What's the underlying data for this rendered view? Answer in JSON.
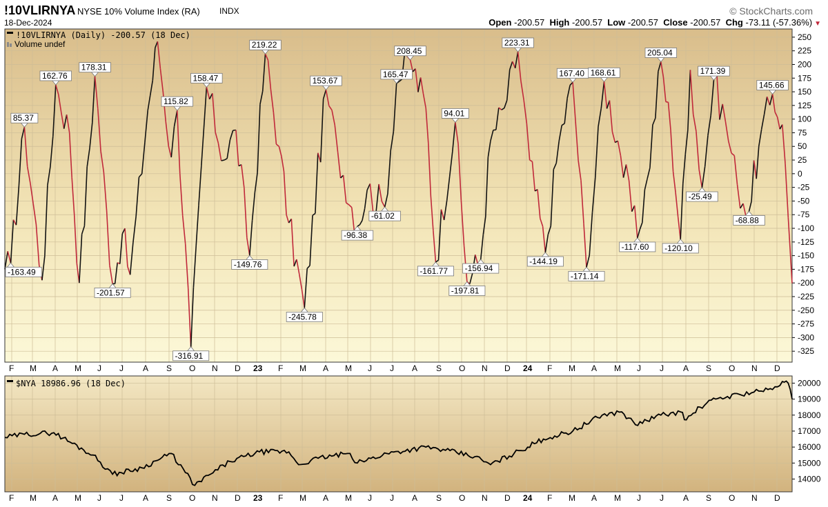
{
  "header": {
    "symbol": "!10VLIRNYA",
    "name": "NYSE 10% Volume Index (RA)",
    "exchange": "INDX",
    "date": "18-Dec-2024",
    "brand": "© StockCharts.com",
    "open_label": "Open",
    "open": "-200.57",
    "high_label": "High",
    "high": "-200.57",
    "low_label": "Low",
    "low": "-200.57",
    "close_label": "Close",
    "close": "-200.57",
    "chg_label": "Chg",
    "chg": "-73.11 (-57.36%)"
  },
  "chart_data": [
    {
      "type": "line",
      "legend": "!10VLIRNYA (Daily) -200.57 (18 Dec)",
      "sublegend": "Volume undef",
      "colors": {
        "up": "#111111",
        "down": "#c0283a"
      },
      "ylim": [
        -345,
        265
      ],
      "yticks": [
        250,
        225,
        200,
        175,
        150,
        125,
        100,
        75,
        50,
        25,
        0,
        -25,
        -50,
        -75,
        -100,
        -125,
        -150,
        -175,
        -200,
        -225,
        -250,
        -275,
        -300,
        -325
      ],
      "x_labels": [
        "F",
        "M",
        "A",
        "M",
        "J",
        "J",
        "A",
        "S",
        "O",
        "N",
        "D",
        "23",
        "F",
        "M",
        "A",
        "M",
        "J",
        "J",
        "A",
        "S",
        "O",
        "N",
        "D",
        "24",
        "F",
        "M",
        "A",
        "M",
        "J",
        "J",
        "A",
        "S",
        "O",
        "N",
        "D"
      ],
      "x_label_bold": [
        "23",
        "24"
      ],
      "points": [
        [
          0,
          -175
        ],
        [
          3,
          -163.49
        ],
        [
          10,
          85.37
        ],
        [
          19,
          -195
        ],
        [
          26,
          162.76
        ],
        [
          33,
          75
        ],
        [
          38,
          -200
        ],
        [
          46,
          178.31
        ],
        [
          55,
          -201.57
        ],
        [
          60,
          -110
        ],
        [
          64,
          -185
        ],
        [
          73,
          115.82
        ],
        [
          78,
          242
        ],
        [
          85,
          30
        ],
        [
          88,
          115.82
        ],
        [
          95,
          -316.91
        ],
        [
          103,
          158.47
        ],
        [
          112,
          25
        ],
        [
          118,
          80
        ],
        [
          125,
          -149.76
        ],
        [
          133,
          219.22
        ],
        [
          140,
          50
        ],
        [
          145,
          -90
        ],
        [
          153,
          -245.78
        ],
        [
          164,
          153.67
        ],
        [
          170,
          40
        ],
        [
          180,
          -96.38
        ],
        [
          185,
          -30
        ],
        [
          194,
          -61.02
        ],
        [
          200,
          165.47
        ],
        [
          207,
          208.45
        ],
        [
          215,
          120
        ],
        [
          220,
          -161.77
        ],
        [
          230,
          94.01
        ],
        [
          236,
          -197.81
        ],
        [
          243,
          -156.94
        ],
        [
          248,
          60
        ],
        [
          255,
          120
        ],
        [
          262,
          223.31
        ],
        [
          268,
          25
        ],
        [
          276,
          -144.19
        ],
        [
          283,
          60
        ],
        [
          290,
          167.4
        ],
        [
          297,
          -171.14
        ],
        [
          306,
          168.61
        ],
        [
          313,
          60
        ],
        [
          323,
          -117.6
        ],
        [
          328,
          -10
        ],
        [
          335,
          205.04
        ],
        [
          340,
          80
        ],
        [
          345,
          -120.1
        ],
        [
          350,
          190
        ],
        [
          356,
          -25.49
        ],
        [
          362,
          171.39
        ],
        [
          368,
          95
        ],
        [
          374,
          -20
        ],
        [
          380,
          -68.88
        ],
        [
          385,
          50
        ],
        [
          392,
          145.66
        ],
        [
          397,
          90
        ],
        [
          400,
          -80
        ],
        [
          402,
          -200.57
        ]
      ],
      "annotations": [
        {
          "x": 3,
          "y": -163.49,
          "text": "-163.49",
          "pos": "below"
        },
        {
          "x": 10,
          "y": 85.37,
          "text": "85.37",
          "pos": "above"
        },
        {
          "x": 26,
          "y": 162.76,
          "text": "162.76",
          "pos": "above"
        },
        {
          "x": 46,
          "y": 178.31,
          "text": "178.31",
          "pos": "above"
        },
        {
          "x": 55,
          "y": -201.57,
          "text": "-201.57",
          "pos": "below"
        },
        {
          "x": 88,
          "y": 115.82,
          "text": "115.82",
          "pos": "above"
        },
        {
          "x": 95,
          "y": -316.91,
          "text": "-316.91",
          "pos": "below"
        },
        {
          "x": 103,
          "y": 158.47,
          "text": "158.47",
          "pos": "above"
        },
        {
          "x": 125,
          "y": -149.76,
          "text": "-149.76",
          "pos": "below"
        },
        {
          "x": 133,
          "y": 219.22,
          "text": "219.22",
          "pos": "above"
        },
        {
          "x": 153,
          "y": -245.78,
          "text": "-245.78",
          "pos": "below"
        },
        {
          "x": 164,
          "y": 153.67,
          "text": "153.67",
          "pos": "above"
        },
        {
          "x": 180,
          "y": -96.38,
          "text": "-96.38",
          "pos": "below"
        },
        {
          "x": 194,
          "y": -61.02,
          "text": "-61.02",
          "pos": "below"
        },
        {
          "x": 200,
          "y": 165.47,
          "text": "165.47",
          "pos": "above"
        },
        {
          "x": 207,
          "y": 208.45,
          "text": "208.45",
          "pos": "above"
        },
        {
          "x": 220,
          "y": -161.77,
          "text": "-161.77",
          "pos": "below"
        },
        {
          "x": 230,
          "y": 94.01,
          "text": "94.01",
          "pos": "above"
        },
        {
          "x": 236,
          "y": -197.81,
          "text": "-197.81",
          "pos": "below"
        },
        {
          "x": 243,
          "y": -156.94,
          "text": "-156.94",
          "pos": "below"
        },
        {
          "x": 262,
          "y": 223.31,
          "text": "223.31",
          "pos": "above"
        },
        {
          "x": 276,
          "y": -144.19,
          "text": "-144.19",
          "pos": "below"
        },
        {
          "x": 290,
          "y": 167.4,
          "text": "167.40",
          "pos": "above"
        },
        {
          "x": 297,
          "y": -171.14,
          "text": "-171.14",
          "pos": "below"
        },
        {
          "x": 306,
          "y": 168.61,
          "text": "168.61",
          "pos": "above"
        },
        {
          "x": 323,
          "y": -117.6,
          "text": "-117.60",
          "pos": "below"
        },
        {
          "x": 335,
          "y": 205.04,
          "text": "205.04",
          "pos": "above"
        },
        {
          "x": 345,
          "y": -120.1,
          "text": "-120.10",
          "pos": "below"
        },
        {
          "x": 356,
          "y": -25.49,
          "text": "-25.49",
          "pos": "below"
        },
        {
          "x": 362,
          "y": 171.39,
          "text": "171.39",
          "pos": "above"
        },
        {
          "x": 380,
          "y": -68.88,
          "text": "-68.88",
          "pos": "below"
        },
        {
          "x": 392,
          "y": 145.66,
          "text": "145.66",
          "pos": "above"
        }
      ]
    },
    {
      "type": "line",
      "legend": "$NYA 18986.96 (18 Dec)",
      "color": "#000000",
      "ylim": [
        13200,
        20450
      ],
      "yticks": [
        20000,
        19000,
        18000,
        17000,
        16000,
        15000,
        14000
      ],
      "points": [
        [
          0,
          16600
        ],
        [
          10,
          16800
        ],
        [
          25,
          16900
        ],
        [
          45,
          15500
        ],
        [
          55,
          14300
        ],
        [
          70,
          14700
        ],
        [
          85,
          15600
        ],
        [
          97,
          13600
        ],
        [
          105,
          14300
        ],
        [
          115,
          15100
        ],
        [
          130,
          15700
        ],
        [
          145,
          15700
        ],
        [
          150,
          14900
        ],
        [
          160,
          15300
        ],
        [
          175,
          15600
        ],
        [
          180,
          15000
        ],
        [
          195,
          15600
        ],
        [
          215,
          16000
        ],
        [
          225,
          15800
        ],
        [
          240,
          15400
        ],
        [
          248,
          14900
        ],
        [
          260,
          15600
        ],
        [
          275,
          16500
        ],
        [
          290,
          17000
        ],
        [
          305,
          18000
        ],
        [
          315,
          18200
        ],
        [
          322,
          17400
        ],
        [
          335,
          18000
        ],
        [
          345,
          18200
        ],
        [
          348,
          17700
        ],
        [
          355,
          18500
        ],
        [
          363,
          19000
        ],
        [
          375,
          19300
        ],
        [
          385,
          19500
        ],
        [
          392,
          19600
        ],
        [
          397,
          20100
        ],
        [
          400,
          20000
        ],
        [
          402,
          19000
        ]
      ]
    }
  ]
}
